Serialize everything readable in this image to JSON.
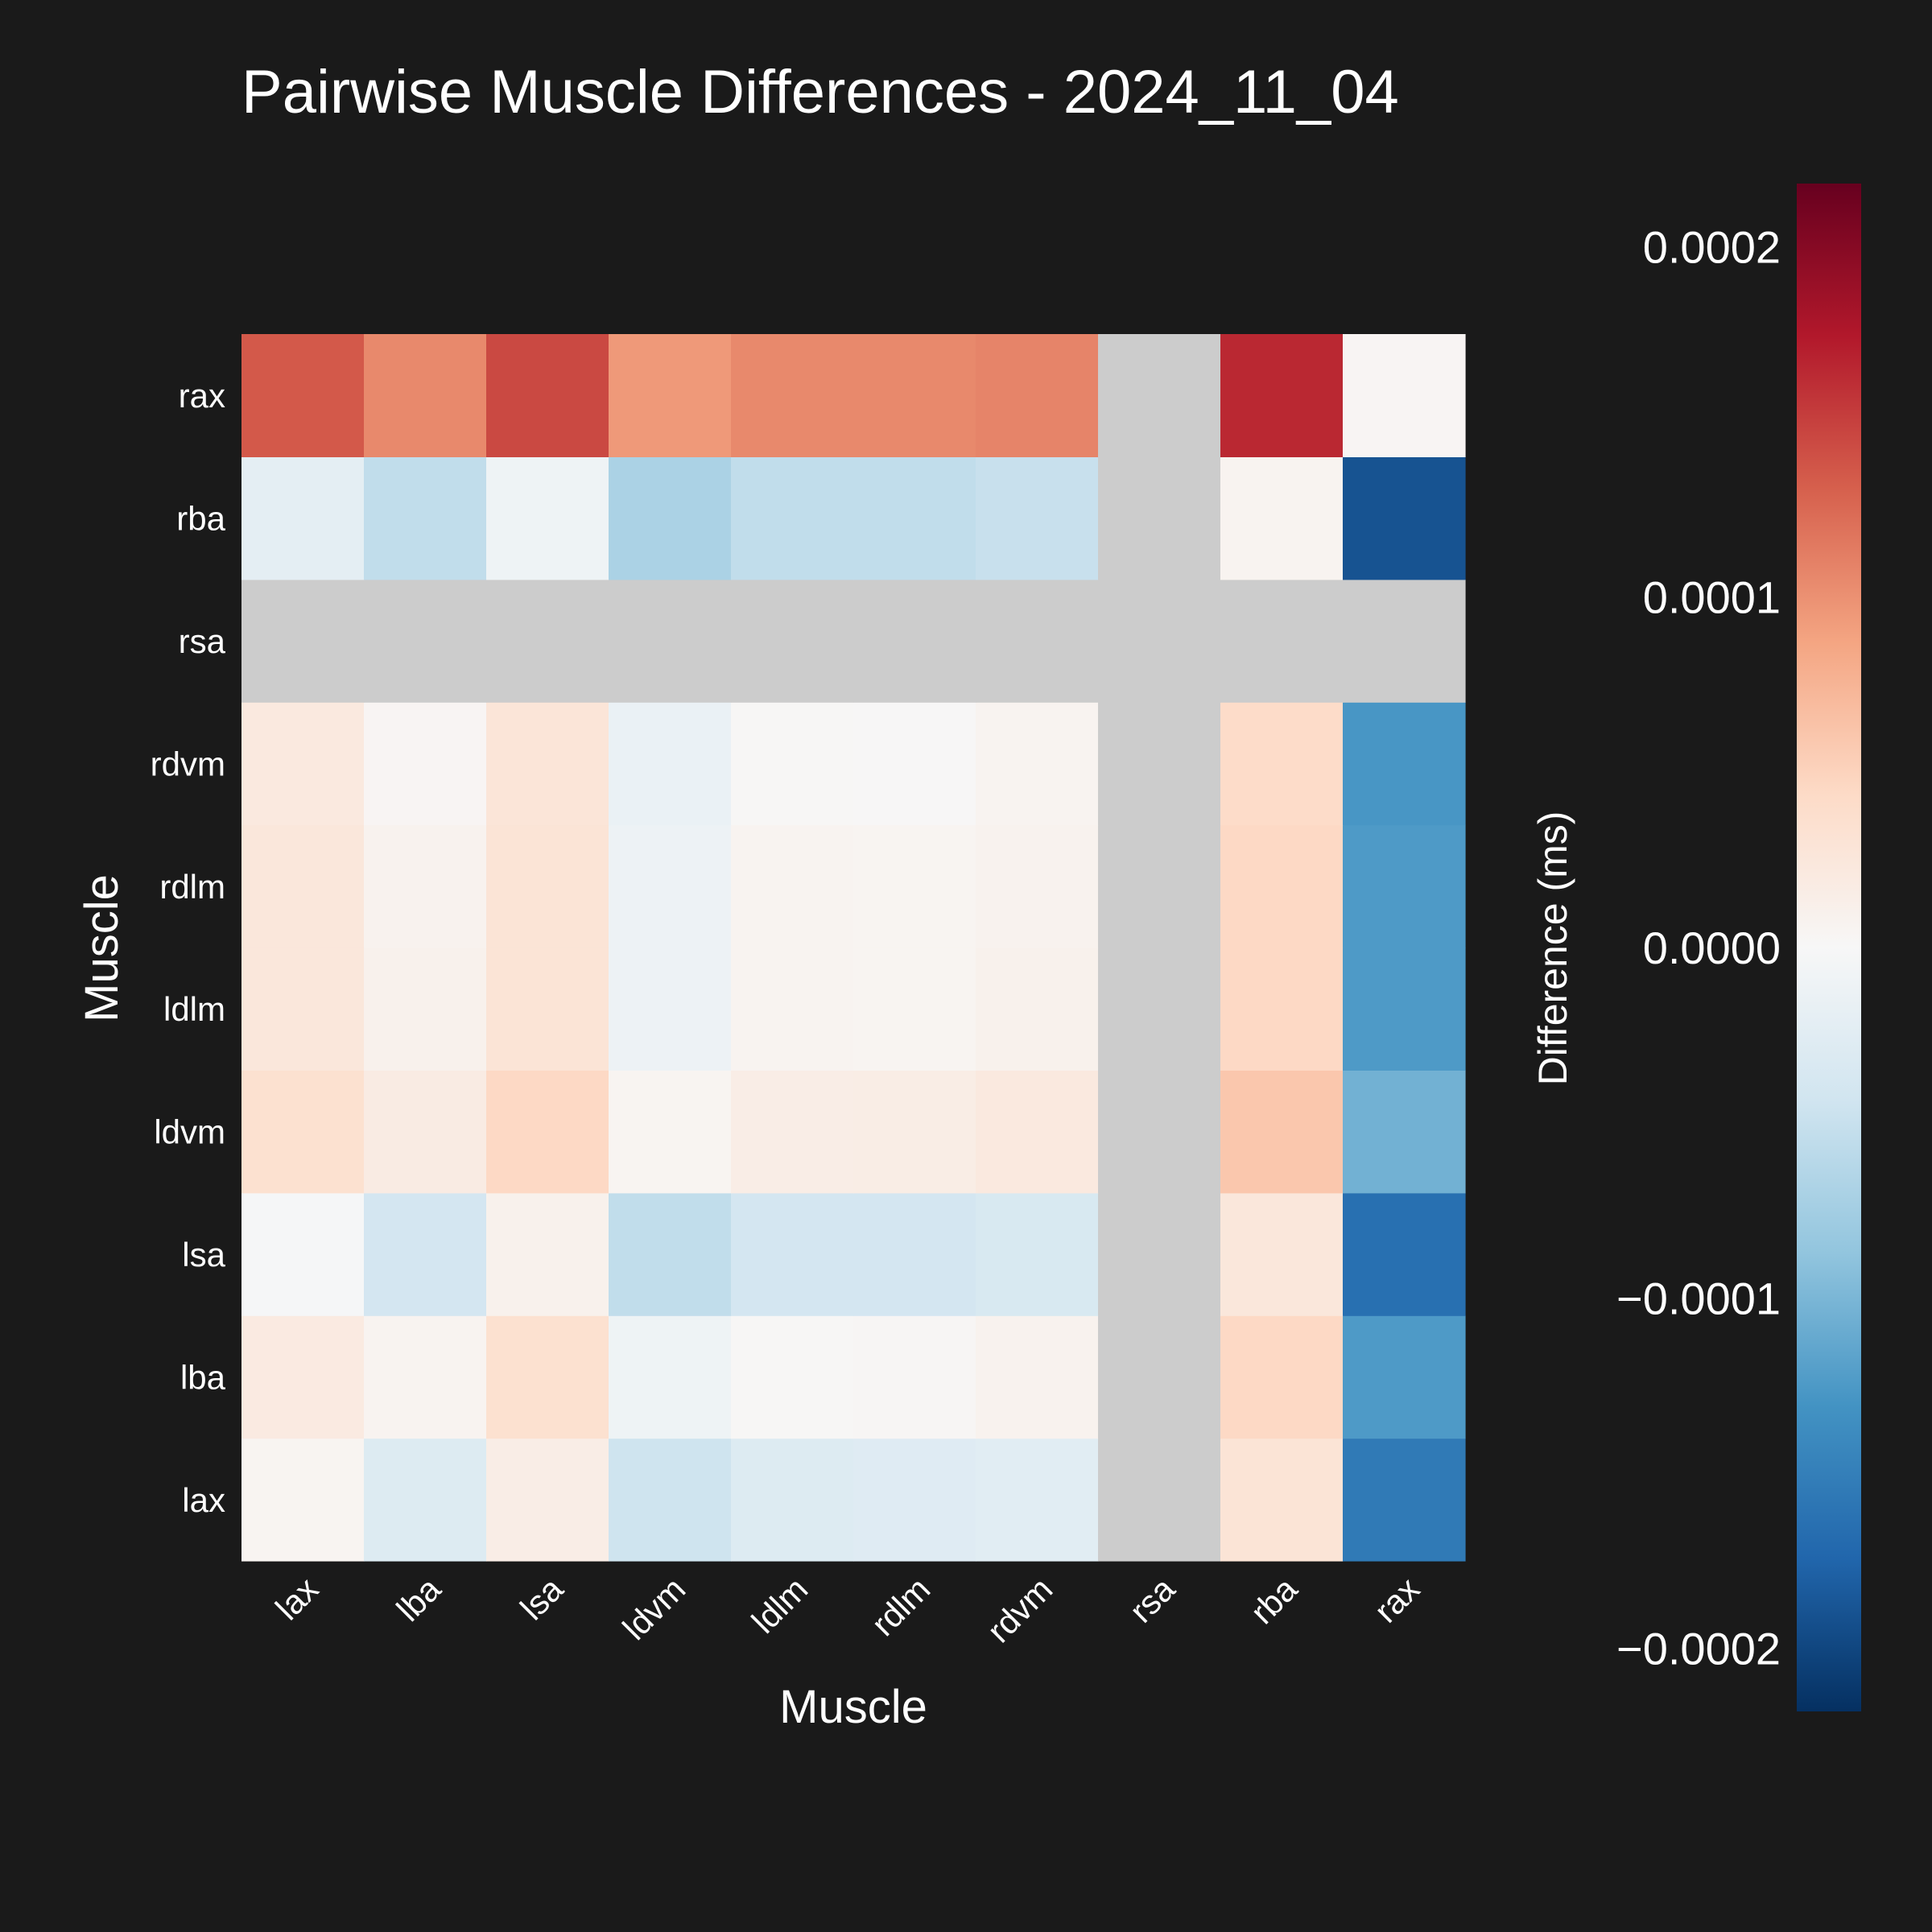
{
  "chart_data": {
    "type": "heatmap",
    "title": "Pairwise Muscle Differences - 2024_11_04",
    "xlabel": "Muscle",
    "ylabel": "Muscle",
    "x_categories": [
      "lax",
      "lba",
      "lsa",
      "ldvm",
      "ldlm",
      "rdlm",
      "rdvm",
      "rsa",
      "rba",
      "rax"
    ],
    "y_categories": [
      "lax",
      "lba",
      "lsa",
      "ldvm",
      "ldlm",
      "rdlm",
      "rdvm",
      "rsa",
      "rba",
      "rax"
    ],
    "values": [
      [
        5e-06,
        -3e-05,
        1.5e-05,
        -4.5e-05,
        -3e-05,
        -2.8e-05,
        -2.5e-05,
        null,
        3e-05,
        -0.000155
      ],
      [
        2e-05,
        6e-06,
        3.5e-05,
        -1e-05,
        2e-06,
        3e-06,
        8e-06,
        null,
        4.5e-05,
        -0.000125
      ],
      [
        -2e-06,
        -4e-05,
        1e-05,
        -5.5e-05,
        -4e-05,
        -4e-05,
        -3.5e-05,
        null,
        2.5e-05,
        -0.000165
      ],
      [
        3.5e-05,
        1.8e-05,
        4.5e-05,
        5e-06,
        1.5e-05,
        1.6e-05,
        2.2e-05,
        null,
        6e-05,
        -0.000105
      ],
      [
        2.5e-05,
        1e-05,
        3e-05,
        -1.2e-05,
        6e-06,
        5e-06,
        1e-05,
        null,
        4.5e-05,
        -0.000125
      ],
      [
        2.5e-05,
        8e-06,
        3e-05,
        -1.2e-05,
        6e-06,
        5e-06,
        8e-06,
        null,
        4.5e-05,
        -0.000125
      ],
      [
        2.2e-05,
        4e-06,
        2.8e-05,
        -1.5e-05,
        2e-06,
        1e-06,
        6e-06,
        null,
        4.2e-05,
        -0.000128
      ],
      [
        null,
        null,
        null,
        null,
        null,
        null,
        null,
        null,
        null,
        null
      ],
      [
        -2.2e-05,
        -5.5e-05,
        -1e-05,
        -7e-05,
        -5.5e-05,
        -5.5e-05,
        -5e-05,
        null,
        6e-06,
        -0.00019
      ],
      [
        0.000135,
        0.000105,
        0.000145,
        9.5e-05,
        0.000105,
        0.000105,
        0.000108,
        null,
        0.000165,
        4e-06
      ]
    ],
    "missing_color": "#cccccc",
    "colorbar": {
      "label": "Difference (ms)",
      "vmin": -0.000218,
      "vmax": 0.000218,
      "ticks": [
        0.0002,
        0.0001,
        0.0,
        -0.0001,
        -0.0002
      ],
      "tick_labels": [
        "0.0002",
        "0.0001",
        "0.0000",
        "−0.0001",
        "−0.0002"
      ],
      "colormap_stops": [
        "#053061",
        "#2166ac",
        "#4393c3",
        "#92c5de",
        "#d1e5f0",
        "#f7f7f7",
        "#fddbc7",
        "#f4a582",
        "#d6604d",
        "#b2182b",
        "#67001f"
      ]
    },
    "grid": false,
    "legend": "colorbar-right"
  }
}
